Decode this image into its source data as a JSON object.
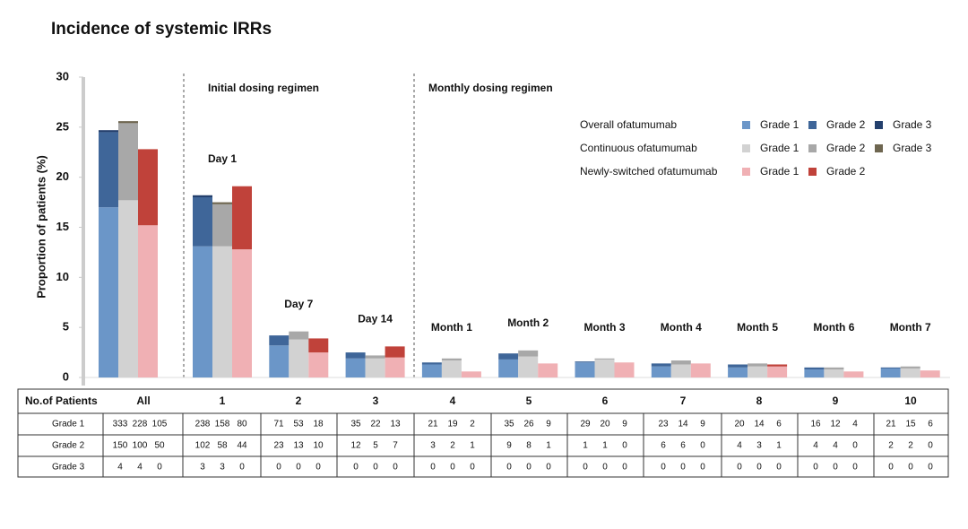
{
  "chart_data": {
    "type": "bar",
    "stacked": true,
    "title": "Incidence of systemic IRRs",
    "y_label": "Proportion of patients (%)",
    "annotations": [
      "Initial dosing regimen",
      "Monthly dosing regimen"
    ],
    "categories": [
      null,
      "Day 1",
      "Day 7",
      "Day 14",
      "Month 1",
      "Month 2",
      "Month 3",
      "Month 4",
      "Month 5",
      "Month 6",
      "Month 7"
    ],
    "ylim": [
      0,
      30
    ],
    "yticks": [
      0,
      5,
      10,
      15,
      20,
      25,
      30
    ],
    "groups": [
      {
        "name": "Overall ofatumumab",
        "series": [
          {
            "name": "Grade 1",
            "color": "#6b96c8",
            "values": [
              17,
              13.1,
              3.2,
              1.9,
              1.3,
              1.8,
              1.5,
              1.1,
              1.0,
              0.8,
              0.9
            ]
          },
          {
            "name": "Grade 2",
            "color": "#3f6699",
            "values": [
              7.5,
              4.9,
              1.0,
              0.6,
              0.2,
              0.6,
              0.1,
              0.3,
              0.3,
              0.2,
              0.1
            ]
          },
          {
            "name": "Grade 3",
            "color": "#24406d",
            "values": [
              0.2,
              0.2,
              0,
              0,
              0,
              0,
              0,
              0,
              0,
              0,
              0
            ]
          }
        ]
      },
      {
        "name": "Continuous ofatumumab",
        "series": [
          {
            "name": "Grade 1",
            "color": "#d2d2d2",
            "values": [
              17.7,
              13.1,
              3.8,
              1.9,
              1.7,
              2.1,
              1.8,
              1.3,
              1.1,
              0.8,
              0.9
            ]
          },
          {
            "name": "Grade 2",
            "color": "#a8a8a8",
            "values": [
              7.7,
              4.2,
              0.8,
              0.3,
              0.2,
              0.6,
              0.1,
              0.4,
              0.3,
              0.2,
              0.2
            ]
          },
          {
            "name": "Grade 3",
            "color": "#6e6650",
            "values": [
              0.2,
              0.2,
              0,
              0,
              0,
              0,
              0,
              0,
              0,
              0,
              0
            ]
          }
        ]
      },
      {
        "name": "Newly-switched ofatumumab",
        "series": [
          {
            "name": "Grade 1",
            "color": "#f0b0b4",
            "values": [
              15.2,
              12.8,
              2.5,
              2.0,
              0.6,
              1.4,
              1.5,
              1.4,
              1.1,
              0.6,
              0.7
            ]
          },
          {
            "name": "Grade 2",
            "color": "#c0423a",
            "values": [
              7.6,
              6.3,
              1.4,
              1.1,
              0,
              0,
              0,
              0,
              0.2,
              0,
              0
            ]
          }
        ]
      }
    ]
  },
  "table": {
    "header": [
      "No.of Patients",
      "All",
      "1",
      "2",
      "3",
      "4",
      "5",
      "6",
      "7",
      "8",
      "9",
      "10"
    ],
    "rows": [
      {
        "label": "Grade 1",
        "cells": [
          [
            333,
            228,
            105
          ],
          [
            238,
            158,
            80
          ],
          [
            71,
            53,
            18
          ],
          [
            35,
            22,
            13
          ],
          [
            21,
            19,
            2
          ],
          [
            35,
            26,
            9
          ],
          [
            29,
            20,
            9
          ],
          [
            23,
            14,
            9
          ],
          [
            20,
            14,
            6
          ],
          [
            16,
            12,
            4
          ],
          [
            21,
            15,
            6
          ]
        ]
      },
      {
        "label": "Grade 2",
        "cells": [
          [
            150,
            100,
            50
          ],
          [
            102,
            58,
            44
          ],
          [
            23,
            13,
            10
          ],
          [
            12,
            5,
            7
          ],
          [
            3,
            2,
            1
          ],
          [
            9,
            8,
            1
          ],
          [
            1,
            1,
            0
          ],
          [
            6,
            6,
            0
          ],
          [
            4,
            3,
            1
          ],
          [
            4,
            4,
            0
          ],
          [
            2,
            2,
            0
          ]
        ]
      },
      {
        "label": "Grade 3",
        "cells": [
          [
            4,
            4,
            0
          ],
          [
            3,
            3,
            0
          ],
          [
            0,
            0,
            0
          ],
          [
            0,
            0,
            0
          ],
          [
            0,
            0,
            0
          ],
          [
            0,
            0,
            0
          ],
          [
            0,
            0,
            0
          ],
          [
            0,
            0,
            0
          ],
          [
            0,
            0,
            0
          ],
          [
            0,
            0,
            0
          ],
          [
            0,
            0,
            0
          ]
        ]
      }
    ]
  }
}
